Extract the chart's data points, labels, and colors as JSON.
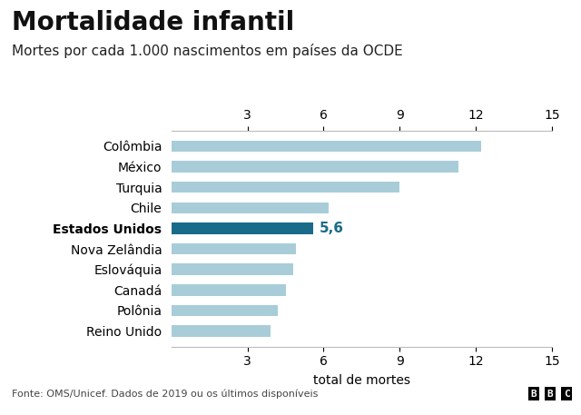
{
  "title": "Mortalidade infantil",
  "subtitle": "Mortes por cada 1.000 nascimentos em países da OCDE",
  "categories": [
    "Colômbia",
    "México",
    "Turquia",
    "Chile",
    "Estados Unidos",
    "Nova Zelândia",
    "Eslováquia",
    "Canadá",
    "Polônia",
    "Reino Unido"
  ],
  "values": [
    12.2,
    11.3,
    9.0,
    6.2,
    5.6,
    4.9,
    4.8,
    4.5,
    4.2,
    3.9
  ],
  "bar_colors": [
    "#a8cdd8",
    "#a8cdd8",
    "#a8cdd8",
    "#a8cdd8",
    "#1a6b8a",
    "#a8cdd8",
    "#a8cdd8",
    "#a8cdd8",
    "#a8cdd8",
    "#a8cdd8"
  ],
  "highlight_index": 4,
  "highlight_label": "5,6",
  "highlight_label_color": "#1a6b8a",
  "xlabel": "total de mortes",
  "xlim": [
    0,
    15
  ],
  "xticks_top": [
    3,
    6,
    9,
    12,
    15
  ],
  "xticks_bottom": [
    3,
    6,
    9,
    12,
    15
  ],
  "xlabel_fontsize": 10,
  "title_fontsize": 20,
  "subtitle_fontsize": 11,
  "tick_label_fontsize": 10,
  "category_fontsize": 10,
  "footer_text": "Fonte: OMS/Unicef. Dados de 2019 ou os últimos disponíveis",
  "footer_logo": "BBC",
  "background_color": "#ffffff",
  "light_bar_color": "#a8cdd8",
  "dark_bar_color": "#1a6b8a"
}
